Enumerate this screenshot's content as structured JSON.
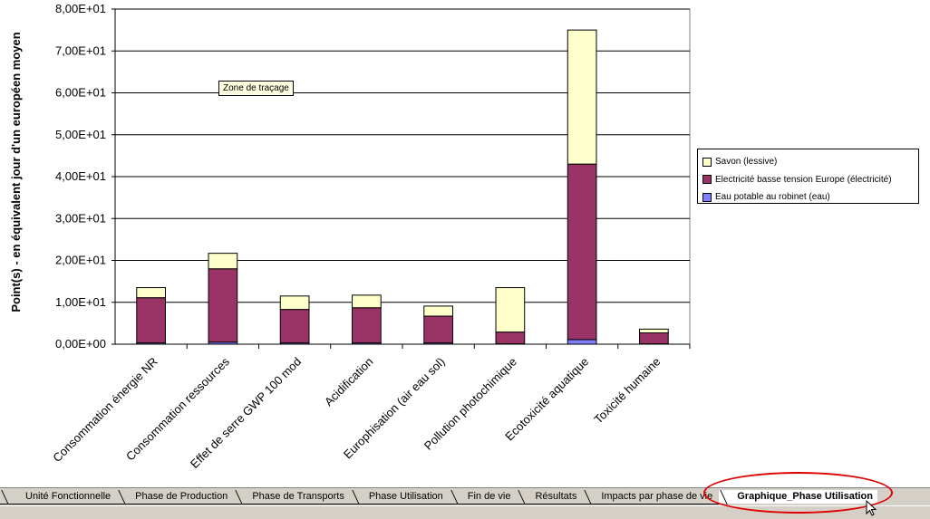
{
  "chart_data": {
    "type": "bar",
    "stacked": true,
    "categories": [
      "Consommation énergie NR",
      "Consommation ressources",
      "Effet de serre GWP 100 mod",
      "Acidification",
      "Europhisation (air eau sol)",
      "Pollution photochimique",
      "Ecotoxicité aquatique",
      "Toxicité humaine"
    ],
    "series": [
      {
        "name": "Eau potable au robinet (eau)",
        "color": "#8080ff",
        "values": [
          0.3,
          0.5,
          0.3,
          0.3,
          0.3,
          0.1,
          1.1,
          0.1
        ]
      },
      {
        "name": "Electricité basse tension Europe (électricité)",
        "color": "#993366",
        "values": [
          10.8,
          17.5,
          8.0,
          8.4,
          6.4,
          2.8,
          41.9,
          2.6
        ]
      },
      {
        "name": "Savon (lessive)",
        "color": "#ffffcc",
        "values": [
          2.4,
          3.7,
          3.2,
          3.0,
          2.4,
          10.6,
          32.0,
          0.9
        ]
      }
    ],
    "ylabel": "Point(s)  - en équivalent jour d'un européen moyen",
    "yticks": [
      "0,00E+00",
      "1,00E+01",
      "2,00E+01",
      "3,00E+01",
      "4,00E+01",
      "5,00E+01",
      "6,00E+01",
      "7,00E+01",
      "8,00E+01"
    ],
    "ylim": [
      0,
      80
    ],
    "legend_position": "right",
    "grid": true
  },
  "legend": {
    "items": [
      {
        "label": "Savon (lessive)",
        "color": "#ffffcc"
      },
      {
        "label": "Electricité basse tension Europe (électricité)",
        "color": "#993366"
      },
      {
        "label": "Eau potable au robinet (eau)",
        "color": "#8080ff"
      }
    ]
  },
  "tooltip": {
    "text": "Zone de traçage"
  },
  "sheet_tabs": [
    {
      "label": "Unité Fonctionnelle",
      "active": false
    },
    {
      "label": "Phase de Production",
      "active": false
    },
    {
      "label": "Phase de Transports",
      "active": false
    },
    {
      "label": "Phase Utilisation",
      "active": false
    },
    {
      "label": "Fin de vie",
      "active": false
    },
    {
      "label": "Résultats",
      "active": false
    },
    {
      "label": "Impacts par phase de vie",
      "active": false
    },
    {
      "label": "Graphique_Phase Utilisation",
      "active": true
    }
  ],
  "highlight_color": "#e00000"
}
